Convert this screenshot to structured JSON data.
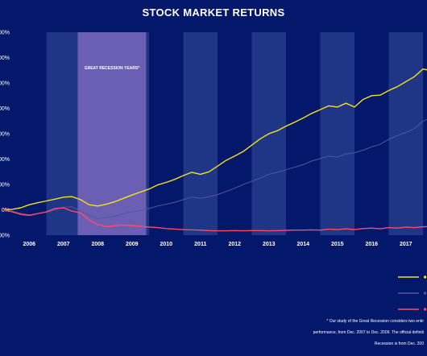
{
  "chart_data": {
    "type": "line",
    "title": "STOCK MARKET RETURNS",
    "recession_label": "GREAT RECESSION YEARS*",
    "x_tick_labels": [
      "2006",
      "2007",
      "2008",
      "2009",
      "2010",
      "2011",
      "2012",
      "2013",
      "2014",
      "2015",
      "2016",
      "2017"
    ],
    "ylim": [
      -100,
      700
    ],
    "y_tick_labels": [
      "-100%",
      "0%",
      "100%",
      "200%",
      "300%",
      "400%",
      "500%",
      "600%",
      "700%"
    ],
    "grid": false,
    "legend_position": "bottom-right",
    "recession_band": [
      "2007-12",
      "2009-12"
    ],
    "series": [
      {
        "color": "#f5e11e",
        "points": [
          [
            "2005-10",
            0
          ],
          [
            "2006-01",
            2
          ],
          [
            "2006-04",
            8
          ],
          [
            "2006-07",
            20
          ],
          [
            "2006-10",
            28
          ],
          [
            "2007-01",
            35
          ],
          [
            "2007-04",
            42
          ],
          [
            "2007-07",
            50
          ],
          [
            "2007-10",
            52
          ],
          [
            "2008-01",
            40
          ],
          [
            "2008-04",
            20
          ],
          [
            "2008-07",
            15
          ],
          [
            "2008-10",
            22
          ],
          [
            "2009-01",
            32
          ],
          [
            "2009-04",
            45
          ],
          [
            "2009-07",
            58
          ],
          [
            "2009-10",
            70
          ],
          [
            "2010-01",
            82
          ],
          [
            "2010-04",
            98
          ],
          [
            "2010-07",
            108
          ],
          [
            "2010-10",
            120
          ],
          [
            "2011-01",
            135
          ],
          [
            "2011-04",
            148
          ],
          [
            "2011-07",
            140
          ],
          [
            "2011-10",
            150
          ],
          [
            "2012-01",
            172
          ],
          [
            "2012-04",
            195
          ],
          [
            "2012-07",
            212
          ],
          [
            "2012-10",
            230
          ],
          [
            "2013-01",
            255
          ],
          [
            "2013-04",
            280
          ],
          [
            "2013-07",
            300
          ],
          [
            "2013-10",
            312
          ],
          [
            "2014-01",
            330
          ],
          [
            "2014-04",
            345
          ],
          [
            "2014-07",
            362
          ],
          [
            "2014-10",
            380
          ],
          [
            "2015-01",
            395
          ],
          [
            "2015-04",
            410
          ],
          [
            "2015-07",
            405
          ],
          [
            "2015-10",
            420
          ],
          [
            "2016-01",
            405
          ],
          [
            "2016-04",
            435
          ],
          [
            "2016-07",
            450
          ],
          [
            "2016-10",
            452
          ],
          [
            "2017-01",
            470
          ],
          [
            "2017-04",
            485
          ],
          [
            "2017-07",
            505
          ],
          [
            "2017-10",
            525
          ],
          [
            "2018-01",
            555
          ],
          [
            "2018-04",
            548
          ],
          [
            "2018-07",
            600
          ],
          [
            "2018-10",
            540
          ],
          [
            "2018-12",
            580
          ]
        ]
      },
      {
        "color": "#55569c",
        "points": [
          [
            "2005-10",
            0
          ],
          [
            "2006-01",
            -5
          ],
          [
            "2006-04",
            -14
          ],
          [
            "2006-07",
            -20
          ],
          [
            "2006-10",
            -15
          ],
          [
            "2007-01",
            -10
          ],
          [
            "2007-04",
            0
          ],
          [
            "2007-07",
            10
          ],
          [
            "2007-10",
            12
          ],
          [
            "2008-01",
            -5
          ],
          [
            "2008-04",
            -20
          ],
          [
            "2008-07",
            -35
          ],
          [
            "2008-10",
            -30
          ],
          [
            "2009-01",
            -25
          ],
          [
            "2009-04",
            -15
          ],
          [
            "2009-07",
            -8
          ],
          [
            "2009-10",
            -2
          ],
          [
            "2010-01",
            5
          ],
          [
            "2010-04",
            15
          ],
          [
            "2010-07",
            22
          ],
          [
            "2010-10",
            30
          ],
          [
            "2011-01",
            40
          ],
          [
            "2011-04",
            50
          ],
          [
            "2011-07",
            45
          ],
          [
            "2011-10",
            52
          ],
          [
            "2012-01",
            60
          ],
          [
            "2012-04",
            72
          ],
          [
            "2012-07",
            85
          ],
          [
            "2012-10",
            100
          ],
          [
            "2013-01",
            112
          ],
          [
            "2013-04",
            125
          ],
          [
            "2013-07",
            140
          ],
          [
            "2013-10",
            148
          ],
          [
            "2014-01",
            158
          ],
          [
            "2014-04",
            168
          ],
          [
            "2014-07",
            178
          ],
          [
            "2014-10",
            192
          ],
          [
            "2015-01",
            202
          ],
          [
            "2015-04",
            212
          ],
          [
            "2015-07",
            208
          ],
          [
            "2015-10",
            220
          ],
          [
            "2016-01",
            225
          ],
          [
            "2016-04",
            235
          ],
          [
            "2016-07",
            248
          ],
          [
            "2016-10",
            258
          ],
          [
            "2017-01",
            278
          ],
          [
            "2017-04",
            292
          ],
          [
            "2017-07",
            305
          ],
          [
            "2017-10",
            320
          ],
          [
            "2018-01",
            350
          ],
          [
            "2018-04",
            362
          ],
          [
            "2018-07",
            380
          ],
          [
            "2018-10",
            395
          ],
          [
            "2018-12",
            400
          ]
        ]
      },
      {
        "color": "#ff4a6b",
        "points": [
          [
            "2005-10",
            0
          ],
          [
            "2006-01",
            -8
          ],
          [
            "2006-04",
            -18
          ],
          [
            "2006-07",
            -22
          ],
          [
            "2006-10",
            -15
          ],
          [
            "2007-01",
            -8
          ],
          [
            "2007-04",
            5
          ],
          [
            "2007-07",
            8
          ],
          [
            "2007-10",
            -5
          ],
          [
            "2008-01",
            -12
          ],
          [
            "2008-04",
            -40
          ],
          [
            "2008-07",
            -58
          ],
          [
            "2008-10",
            -66
          ],
          [
            "2009-01",
            -63
          ],
          [
            "2009-04",
            -60
          ],
          [
            "2009-07",
            -62
          ],
          [
            "2009-10",
            -65
          ],
          [
            "2010-01",
            -68
          ],
          [
            "2010-04",
            -70
          ],
          [
            "2010-07",
            -74
          ],
          [
            "2010-10",
            -76
          ],
          [
            "2011-01",
            -78
          ],
          [
            "2011-04",
            -79
          ],
          [
            "2011-07",
            -80
          ],
          [
            "2011-10",
            -82
          ],
          [
            "2012-01",
            -83
          ],
          [
            "2012-04",
            -83
          ],
          [
            "2012-07",
            -82
          ],
          [
            "2012-10",
            -83
          ],
          [
            "2013-01",
            -82
          ],
          [
            "2013-04",
            -82
          ],
          [
            "2013-07",
            -83
          ],
          [
            "2013-10",
            -82
          ],
          [
            "2014-01",
            -81
          ],
          [
            "2014-04",
            -80
          ],
          [
            "2014-07",
            -80
          ],
          [
            "2014-10",
            -79
          ],
          [
            "2015-01",
            -80
          ],
          [
            "2015-04",
            -76
          ],
          [
            "2015-07",
            -78
          ],
          [
            "2015-10",
            -75
          ],
          [
            "2016-01",
            -78
          ],
          [
            "2016-04",
            -74
          ],
          [
            "2016-07",
            -72
          ],
          [
            "2016-10",
            -75
          ],
          [
            "2017-01",
            -70
          ],
          [
            "2017-04",
            -72
          ],
          [
            "2017-07",
            -68
          ],
          [
            "2017-10",
            -70
          ],
          [
            "2018-01",
            -67
          ],
          [
            "2018-04",
            -66
          ],
          [
            "2018-07",
            -64
          ],
          [
            "2018-10",
            -63
          ],
          [
            "2018-12",
            -62
          ]
        ]
      }
    ]
  },
  "footnote_lines": [
    "* Our study of the Great Recession considers two entir",
    "performance, from Dec. 2007 to Dec. 2009. The official definiti",
    "Recession is from Dec. 200"
  ]
}
